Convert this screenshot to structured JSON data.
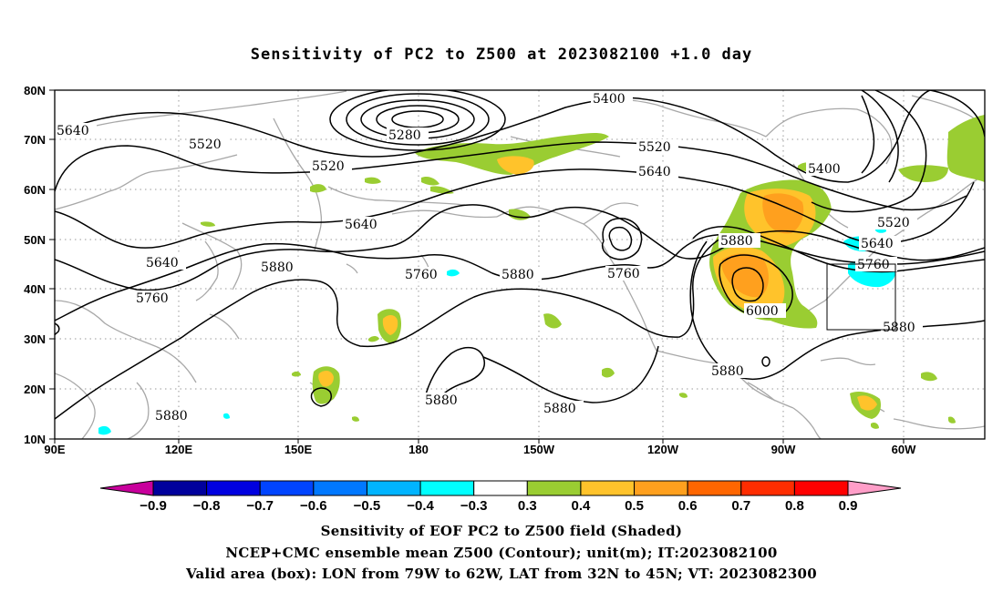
{
  "title": "Sensitivity of PC2 to Z500 at 2023082100 +1.0 day",
  "lat_labels": [
    "80N",
    "70N",
    "60N",
    "50N",
    "40N",
    "30N",
    "20N",
    "10N"
  ],
  "lon_labels": [
    "90E",
    "120E",
    "150E",
    "180",
    "150W",
    "120W",
    "90W",
    "60W"
  ],
  "contour_labels": [
    "5640",
    "5520",
    "5520",
    "5280",
    "5400",
    "5520",
    "5640",
    "5400",
    "5640",
    "5520",
    "5640",
    "5880",
    "5640",
    "5760",
    "5760",
    "5880",
    "5880",
    "5760",
    "5760",
    "5640",
    "6000",
    "5880",
    "5880",
    "5880",
    "5880",
    "5880"
  ],
  "colorbar": {
    "labels": [
      "−0.9",
      "−0.8",
      "−0.7",
      "−0.6",
      "−0.5",
      "−0.4",
      "−0.3",
      "0.3",
      "0.4",
      "0.5",
      "0.6",
      "0.7",
      "0.8",
      "0.9"
    ],
    "colors": [
      "#00009c",
      "#0000e0",
      "#0044ff",
      "#0078ff",
      "#00b4ff",
      "#00ffff",
      "#ffffff",
      "#9acd32",
      "#ffc32b",
      "#ffa01e",
      "#ff6600",
      "#ff2d00",
      "#ff0000"
    ],
    "end_colors": [
      "#c8009c",
      "#ff9ec8"
    ]
  },
  "footer": {
    "line1": "Sensitivity of EOF PC2 to Z500 field (Shaded)",
    "line2": "NCEP+CMC ensemble mean Z500 (Contour); unit(m); IT:2023082100",
    "line3": "Valid area (box): LON from 79W to 62W, LAT from 32N to 45N; VT: 2023082300"
  }
}
